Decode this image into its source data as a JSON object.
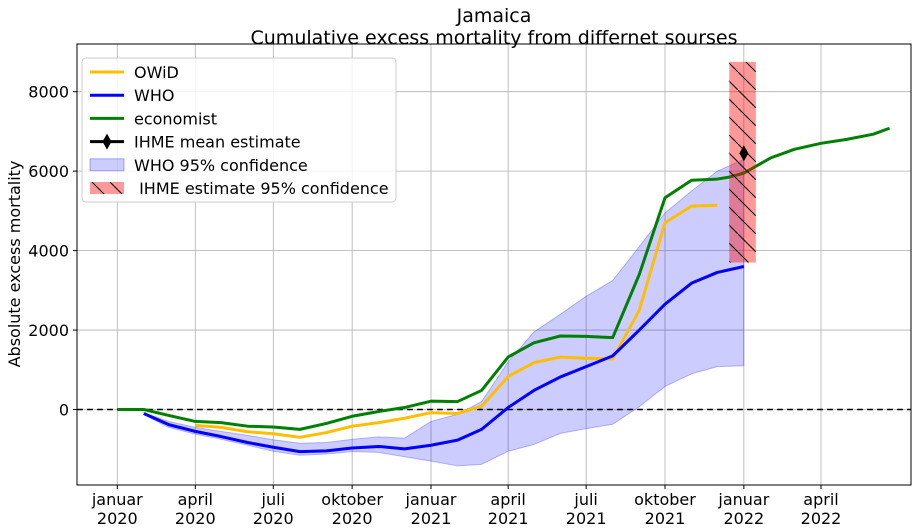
{
  "chart_data": {
    "type": "line",
    "title": "Jamaica",
    "subtitle": "Cumulative excess mortality from differnet sourses",
    "xlabel": "",
    "ylabel": "Absolute excess mortality",
    "xlim": [
      "2019-11-15",
      "2022-07-15"
    ],
    "ylim": [
      -1900,
      9200
    ],
    "grid": true,
    "legend_position": "top-left",
    "x_ticks": [
      {
        "date": "2020-01-01",
        "label": [
          "januar",
          "2020"
        ]
      },
      {
        "date": "2020-04-01",
        "label": [
          "april",
          "2020"
        ]
      },
      {
        "date": "2020-07-01",
        "label": [
          "juli",
          "2020"
        ]
      },
      {
        "date": "2020-10-01",
        "label": [
          "oktober",
          "2020"
        ]
      },
      {
        "date": "2021-01-01",
        "label": [
          "januar",
          "2021"
        ]
      },
      {
        "date": "2021-04-01",
        "label": [
          "april",
          "2021"
        ]
      },
      {
        "date": "2021-07-01",
        "label": [
          "juli",
          "2021"
        ]
      },
      {
        "date": "2021-10-01",
        "label": [
          "oktober",
          "2021"
        ]
      },
      {
        "date": "2022-01-01",
        "label": [
          "januar",
          "2022"
        ]
      },
      {
        "date": "2022-04-01",
        "label": [
          "april",
          "2022"
        ]
      }
    ],
    "y_ticks": [
      0,
      2000,
      4000,
      6000,
      8000
    ],
    "zero_line": {
      "value": 0,
      "style": "dashed",
      "color": "#000000"
    },
    "series": [
      {
        "name": "OWiD",
        "color": "#ffbf00",
        "points": [
          [
            "2020-04-01",
            -400
          ],
          [
            "2020-05-01",
            -450
          ],
          [
            "2020-06-01",
            -560
          ],
          [
            "2020-07-01",
            -610
          ],
          [
            "2020-08-01",
            -700
          ],
          [
            "2020-09-01",
            -580
          ],
          [
            "2020-10-01",
            -420
          ],
          [
            "2020-11-01",
            -330
          ],
          [
            "2020-12-01",
            -220
          ],
          [
            "2021-01-01",
            -80
          ],
          [
            "2021-02-01",
            -100
          ],
          [
            "2021-03-01",
            80
          ],
          [
            "2021-04-01",
            830
          ],
          [
            "2021-05-01",
            1180
          ],
          [
            "2021-06-01",
            1320
          ],
          [
            "2021-07-01",
            1290
          ],
          [
            "2021-08-01",
            1270
          ],
          [
            "2021-09-01",
            2500
          ],
          [
            "2021-10-01",
            4700
          ],
          [
            "2021-11-01",
            5120
          ],
          [
            "2021-12-01",
            5140
          ]
        ]
      },
      {
        "name": "WHO",
        "color": "#0000ff",
        "points": [
          [
            "2020-02-01",
            -100
          ],
          [
            "2020-03-01",
            -380
          ],
          [
            "2020-04-01",
            -550
          ],
          [
            "2020-05-01",
            -680
          ],
          [
            "2020-06-01",
            -830
          ],
          [
            "2020-07-01",
            -950
          ],
          [
            "2020-08-01",
            -1060
          ],
          [
            "2020-09-01",
            -1040
          ],
          [
            "2020-10-01",
            -970
          ],
          [
            "2020-11-01",
            -930
          ],
          [
            "2020-12-01",
            -990
          ],
          [
            "2021-01-01",
            -900
          ],
          [
            "2021-02-01",
            -770
          ],
          [
            "2021-03-01",
            -500
          ],
          [
            "2021-04-01",
            50
          ],
          [
            "2021-05-01",
            480
          ],
          [
            "2021-06-01",
            820
          ],
          [
            "2021-07-01",
            1080
          ],
          [
            "2021-08-01",
            1350
          ],
          [
            "2021-09-01",
            2000
          ],
          [
            "2021-10-01",
            2650
          ],
          [
            "2021-11-01",
            3180
          ],
          [
            "2021-12-01",
            3450
          ],
          [
            "2022-01-01",
            3600
          ]
        ]
      },
      {
        "name": "economist",
        "color": "#008000",
        "points": [
          [
            "2020-01-01",
            0
          ],
          [
            "2020-02-01",
            0
          ],
          [
            "2020-03-01",
            -150
          ],
          [
            "2020-04-01",
            -300
          ],
          [
            "2020-05-01",
            -330
          ],
          [
            "2020-06-01",
            -420
          ],
          [
            "2020-07-01",
            -440
          ],
          [
            "2020-08-01",
            -500
          ],
          [
            "2020-09-01",
            -350
          ],
          [
            "2020-10-01",
            -170
          ],
          [
            "2020-11-01",
            -50
          ],
          [
            "2020-12-01",
            50
          ],
          [
            "2021-01-01",
            210
          ],
          [
            "2021-02-01",
            200
          ],
          [
            "2021-03-01",
            480
          ],
          [
            "2021-04-01",
            1320
          ],
          [
            "2021-05-01",
            1680
          ],
          [
            "2021-06-01",
            1850
          ],
          [
            "2021-07-01",
            1840
          ],
          [
            "2021-08-01",
            1810
          ],
          [
            "2021-09-01",
            3400
          ],
          [
            "2021-10-01",
            5330
          ],
          [
            "2021-11-01",
            5770
          ],
          [
            "2021-12-01",
            5800
          ],
          [
            "2021-12-15",
            5850
          ],
          [
            "2022-01-01",
            5950
          ],
          [
            "2022-02-01",
            6330
          ],
          [
            "2022-03-01",
            6550
          ],
          [
            "2022-04-01",
            6700
          ],
          [
            "2022-05-01",
            6800
          ],
          [
            "2022-06-01",
            6930
          ],
          [
            "2022-06-20",
            7080
          ]
        ]
      }
    ],
    "who_confidence": {
      "name": "WHO 95% confidence",
      "color": "#0000ff",
      "opacity": 0.2,
      "upper": [
        [
          "2020-02-01",
          -80
        ],
        [
          "2020-03-01",
          -300
        ],
        [
          "2020-04-01",
          -450
        ],
        [
          "2020-05-01",
          -550
        ],
        [
          "2020-06-01",
          -650
        ],
        [
          "2020-07-01",
          -760
        ],
        [
          "2020-08-01",
          -850
        ],
        [
          "2020-09-01",
          -830
        ],
        [
          "2020-10-01",
          -750
        ],
        [
          "2020-11-01",
          -690
        ],
        [
          "2020-12-01",
          -720
        ],
        [
          "2021-01-01",
          -300
        ],
        [
          "2021-02-01",
          -120
        ],
        [
          "2021-03-01",
          200
        ],
        [
          "2021-04-01",
          1200
        ],
        [
          "2021-05-01",
          1950
        ],
        [
          "2021-06-01",
          2400
        ],
        [
          "2021-07-01",
          2850
        ],
        [
          "2021-08-01",
          3250
        ],
        [
          "2021-09-01",
          4100
        ],
        [
          "2021-10-01",
          4950
        ],
        [
          "2021-11-01",
          5500
        ],
        [
          "2021-12-01",
          6000
        ],
        [
          "2022-01-01",
          6300
        ]
      ],
      "lower": [
        [
          "2020-02-01",
          -130
        ],
        [
          "2020-03-01",
          -450
        ],
        [
          "2020-04-01",
          -620
        ],
        [
          "2020-05-01",
          -750
        ],
        [
          "2020-06-01",
          -900
        ],
        [
          "2020-07-01",
          -1050
        ],
        [
          "2020-08-01",
          -1150
        ],
        [
          "2020-09-01",
          -1120
        ],
        [
          "2020-10-01",
          -1060
        ],
        [
          "2020-11-01",
          -1080
        ],
        [
          "2020-12-01",
          -1190
        ],
        [
          "2021-01-01",
          -1300
        ],
        [
          "2021-02-01",
          -1420
        ],
        [
          "2021-03-01",
          -1380
        ],
        [
          "2021-04-01",
          -1050
        ],
        [
          "2021-05-01",
          -880
        ],
        [
          "2021-06-01",
          -600
        ],
        [
          "2021-07-01",
          -480
        ],
        [
          "2021-08-01",
          -370
        ],
        [
          "2021-09-01",
          70
        ],
        [
          "2021-10-01",
          580
        ],
        [
          "2021-11-01",
          900
        ],
        [
          "2021-12-01",
          1080
        ],
        [
          "2022-01-01",
          1100
        ]
      ]
    },
    "ihme_confidence": {
      "name": " IHME estimate 95% confidence",
      "color": "#ff0000",
      "opacity": 0.4,
      "x_start": "2021-12-15",
      "x_end": "2022-01-15",
      "low": 3700,
      "high": 8750,
      "hatch": "\\"
    },
    "ihme_mean": {
      "name": "IHME mean estimate",
      "color": "#000000",
      "date": "2022-01-01",
      "value": 6450
    },
    "legend": [
      "OWiD",
      "WHO",
      "economist",
      "IHME mean estimate",
      "WHO 95% confidence",
      " IHME estimate 95% confidence"
    ]
  }
}
